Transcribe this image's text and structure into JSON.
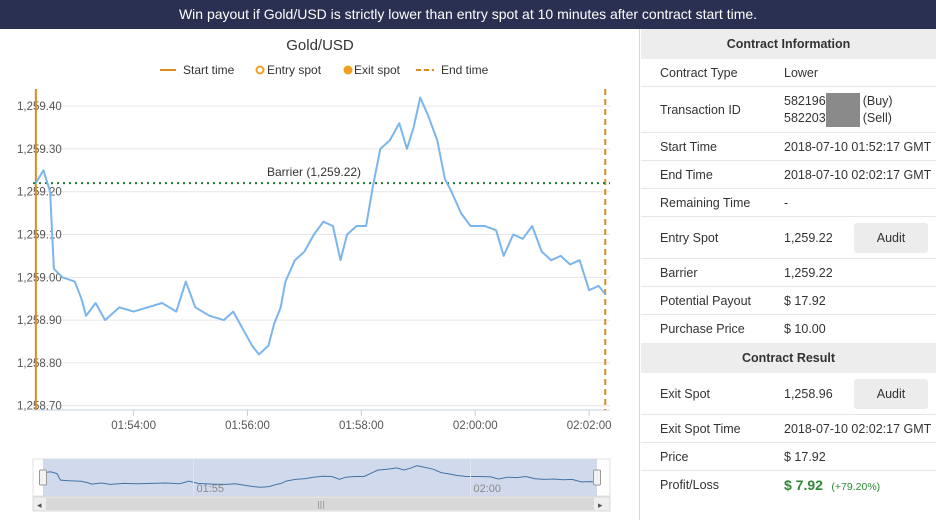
{
  "banner": {
    "text": "Win payout if Gold/USD is strictly lower than entry spot at 10 minutes after contract start time."
  },
  "chart_data": {
    "type": "line",
    "title": "Gold/USD",
    "legend": [
      "Start time",
      "Entry spot",
      "Exit spot",
      "End time"
    ],
    "legend_position": "top",
    "y_ticks": [
      "1,258.70",
      "1,258.80",
      "1,258.90",
      "1,259.00",
      "1,259.10",
      "1,259.20",
      "1,259.30",
      "1,259.40"
    ],
    "x_ticks": [
      "01:54:00",
      "01:56:00",
      "01:58:00",
      "02:00:00",
      "02:02:00"
    ],
    "ylim": [
      1258.69,
      1259.44
    ],
    "xlim": [
      "01:52:14",
      "02:02:22"
    ],
    "grid": true,
    "start_time": "01:52:17",
    "end_time": "02:02:17",
    "barrier": {
      "value": 1259.22,
      "label": "Barrier (1,259.22)"
    },
    "navigator_ticks": [
      "01:55",
      "02:00"
    ],
    "series": [
      {
        "values": [
          [
            "01:52:17",
            1259.22
          ],
          [
            "01:52:25",
            1259.25
          ],
          [
            "01:52:32",
            1259.2
          ],
          [
            "01:52:36",
            1259.02
          ],
          [
            "01:52:45",
            1259.0
          ],
          [
            "01:52:58",
            1258.99
          ],
          [
            "01:53:05",
            1258.95
          ],
          [
            "01:53:10",
            1258.91
          ],
          [
            "01:53:20",
            1258.94
          ],
          [
            "01:53:30",
            1258.9
          ],
          [
            "01:53:45",
            1258.93
          ],
          [
            "01:54:00",
            1258.92
          ],
          [
            "01:54:15",
            1258.93
          ],
          [
            "01:54:30",
            1258.94
          ],
          [
            "01:54:45",
            1258.92
          ],
          [
            "01:54:55",
            1258.99
          ],
          [
            "01:55:05",
            1258.93
          ],
          [
            "01:55:20",
            1258.91
          ],
          [
            "01:55:35",
            1258.9
          ],
          [
            "01:55:45",
            1258.92
          ],
          [
            "01:55:55",
            1258.88
          ],
          [
            "01:56:05",
            1258.84
          ],
          [
            "01:56:12",
            1258.82
          ],
          [
            "01:56:22",
            1258.84
          ],
          [
            "01:56:28",
            1258.89
          ],
          [
            "01:56:35",
            1258.93
          ],
          [
            "01:56:40",
            1258.99
          ],
          [
            "01:56:50",
            1259.04
          ],
          [
            "01:57:00",
            1259.06
          ],
          [
            "01:57:10",
            1259.1
          ],
          [
            "01:57:20",
            1259.13
          ],
          [
            "01:57:30",
            1259.12
          ],
          [
            "01:57:38",
            1259.04
          ],
          [
            "01:57:45",
            1259.1
          ],
          [
            "01:57:55",
            1259.12
          ],
          [
            "01:58:05",
            1259.12
          ],
          [
            "01:58:12",
            1259.21
          ],
          [
            "01:58:20",
            1259.3
          ],
          [
            "01:58:30",
            1259.32
          ],
          [
            "01:58:40",
            1259.36
          ],
          [
            "01:58:48",
            1259.3
          ],
          [
            "01:58:55",
            1259.35
          ],
          [
            "01:59:02",
            1259.42
          ],
          [
            "01:59:10",
            1259.38
          ],
          [
            "01:59:20",
            1259.32
          ],
          [
            "01:59:28",
            1259.23
          ],
          [
            "01:59:35",
            1259.2
          ],
          [
            "01:59:45",
            1259.15
          ],
          [
            "01:59:55",
            1259.12
          ],
          [
            "02:00:10",
            1259.12
          ],
          [
            "02:00:22",
            1259.11
          ],
          [
            "02:00:30",
            1259.05
          ],
          [
            "02:00:40",
            1259.1
          ],
          [
            "02:00:50",
            1259.09
          ],
          [
            "02:01:00",
            1259.12
          ],
          [
            "02:01:10",
            1259.06
          ],
          [
            "02:01:20",
            1259.04
          ],
          [
            "02:01:30",
            1259.05
          ],
          [
            "02:01:40",
            1259.03
          ],
          [
            "02:01:50",
            1259.04
          ],
          [
            "02:02:00",
            1258.97
          ],
          [
            "02:02:10",
            1258.98
          ],
          [
            "02:02:17",
            1258.96
          ]
        ]
      }
    ]
  },
  "contract": {
    "info_title": "Contract Information",
    "result_title": "Contract Result",
    "rows": {
      "type": {
        "label": "Contract Type",
        "value": "Lower"
      },
      "tx": {
        "label": "Transaction ID",
        "buy_id": "582196",
        "buy_suffix": "(Buy)",
        "sell_id": "582203",
        "sell_suffix": "(Sell)"
      },
      "start": {
        "label": "Start Time",
        "value": "2018-07-10 01:52:17 GMT"
      },
      "end": {
        "label": "End Time",
        "value": "2018-07-10 02:02:17 GMT"
      },
      "remaining": {
        "label": "Remaining Time",
        "value": "-"
      },
      "entry": {
        "label": "Entry Spot",
        "value": "1,259.22"
      },
      "barrier": {
        "label": "Barrier",
        "value": "1,259.22"
      },
      "payout": {
        "label": "Potential Payout",
        "value": "$ 17.92"
      },
      "price": {
        "label": "Purchase Price",
        "value": "$ 10.00"
      },
      "exit": {
        "label": "Exit Spot",
        "value": "1,258.96"
      },
      "exit_time": {
        "label": "Exit Spot Time",
        "value": "2018-07-10 02:02:17 GMT"
      },
      "final_price": {
        "label": "Price",
        "value": "$ 17.92"
      },
      "pl": {
        "label": "Profit/Loss",
        "value": "$ 7.92",
        "pct": "(+79.20%)"
      }
    },
    "audit_label": "Audit"
  },
  "colors": {
    "banner_bg": "#2a3052",
    "line": "#7cb5ec",
    "start_line": "#e08a1e",
    "end_line": "#e08a1e",
    "entry_marker": "#f0a020",
    "exit_marker": "#f0a020",
    "barrier": "#1f7a30",
    "profit": "#2e8836",
    "navigator_fill": "#ccd6eb"
  }
}
